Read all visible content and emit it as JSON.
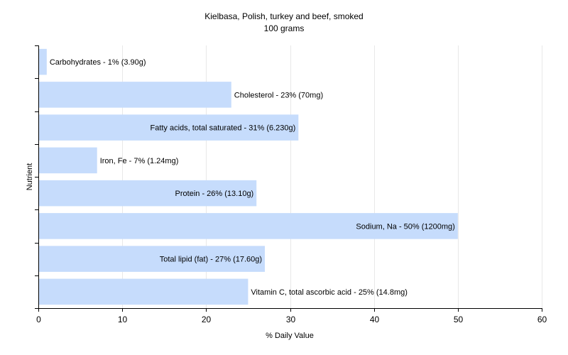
{
  "chart_data": {
    "type": "bar",
    "orientation": "horizontal",
    "title": "Kielbasa, Polish, turkey and beef, smoked",
    "subtitle": "100 grams",
    "xlabel": "% Daily Value",
    "ylabel": "Nutrient",
    "xlim": [
      0,
      60
    ],
    "xticks": [
      0,
      10,
      20,
      30,
      40,
      50,
      60
    ],
    "grid": true,
    "bar_color": "#c6dcfc",
    "categories": [
      "Carbohydrates",
      "Cholesterol",
      "Fatty acids, total saturated",
      "Iron, Fe",
      "Protein",
      "Sodium, Na",
      "Total lipid (fat)",
      "Vitamin C, total ascorbic acid"
    ],
    "values": [
      1,
      23,
      31,
      7,
      26,
      50,
      27,
      25
    ],
    "labels": [
      "Carbohydrates - 1% (3.90g)",
      "Cholesterol - 23% (70mg)",
      "Fatty acids, total saturated - 31% (6.230g)",
      "Iron, Fe - 7% (1.24mg)",
      "Protein - 26% (13.10g)",
      "Sodium, Na - 50% (1200mg)",
      "Total lipid (fat) - 27% (17.60g)",
      "Vitamin C, total ascorbic acid - 25% (14.8mg)"
    ]
  }
}
